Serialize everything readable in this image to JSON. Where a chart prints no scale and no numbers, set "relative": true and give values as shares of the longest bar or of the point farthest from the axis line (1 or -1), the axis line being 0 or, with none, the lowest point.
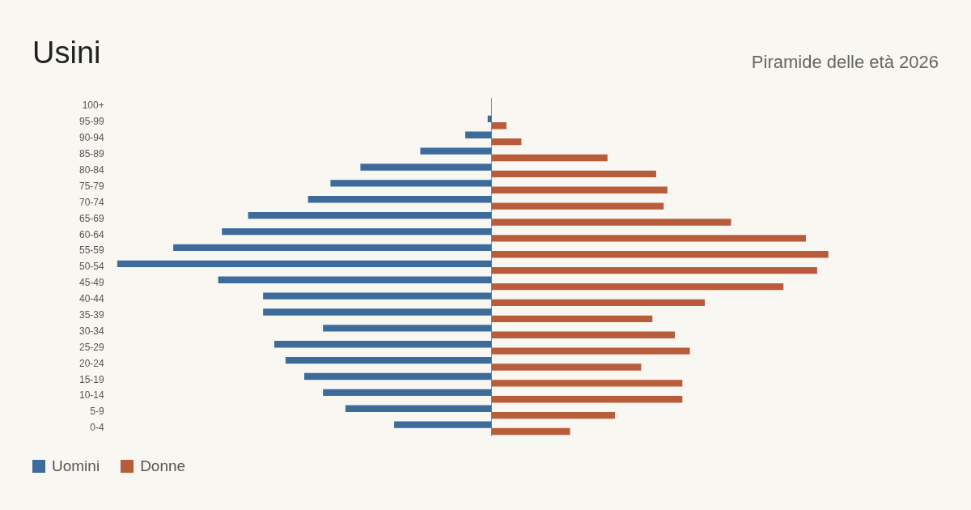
{
  "chart_data": {
    "type": "bar",
    "orientation": "horizontal",
    "relative": true,
    "title": "Usini",
    "subtitle": "Piramide delle età 2026",
    "legend": "bottom left",
    "categories": [
      "100+",
      "95-99",
      "90-94",
      "85-89",
      "80-84",
      "75-79",
      "70-74",
      "65-69",
      "60-64",
      "55-59",
      "50-54",
      "45-49",
      "40-44",
      "35-39",
      "30-34",
      "25-29",
      "20-24",
      "15-19",
      "10-14",
      "5-9",
      "0-4"
    ],
    "series": [
      {
        "name": "Uomini",
        "color": "#3d6b9c",
        "values": [
          0,
          -0.01,
          -0.07,
          -0.19,
          -0.35,
          -0.43,
          -0.49,
          -0.65,
          -0.72,
          -0.85,
          -1,
          -0.73,
          -0.61,
          -0.61,
          -0.45,
          -0.58,
          -0.55,
          -0.5,
          -0.45,
          -0.39,
          -0.26
        ]
      },
      {
        "name": "Donne",
        "color": "#b95c3c",
        "values": [
          0,
          0.04,
          0.08,
          0.31,
          0.44,
          0.47,
          0.46,
          0.64,
          0.84,
          0.9,
          0.87,
          0.78,
          0.57,
          0.43,
          0.49,
          0.53,
          0.4,
          0.51,
          0.51,
          0.33,
          0.21
        ]
      }
    ]
  }
}
